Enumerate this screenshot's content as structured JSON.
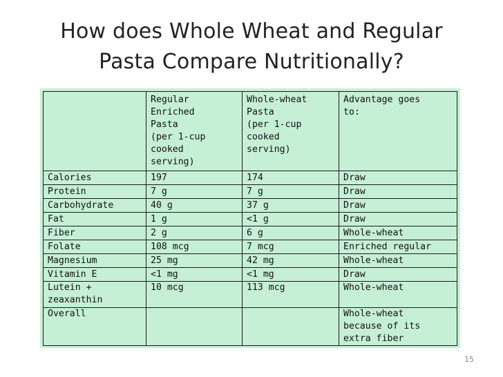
{
  "slide": {
    "title_line1": "How does Whole Wheat and Regular",
    "title_line2": "Pasta Compare Nutritionally?",
    "page_number": "15"
  },
  "table": {
    "headers": [
      "",
      "Regular\nEnriched\nPasta\n(per 1-cup\ncooked\nserving)",
      "Whole-wheat\nPasta\n(per 1-cup\ncooked\nserving)",
      "Advantage goes\nto:"
    ],
    "rows": [
      [
        "Calories",
        "197",
        "174",
        "Draw"
      ],
      [
        "Protein",
        "7 g",
        "7 g",
        "Draw"
      ],
      [
        "Carbohydrate",
        "40 g",
        "37 g",
        "Draw"
      ],
      [
        "Fat",
        "1 g",
        "<1 g",
        "Draw"
      ],
      [
        "Fiber",
        "2 g",
        "6 g",
        "Whole-wheat"
      ],
      [
        "Folate",
        "108 mcg",
        "7 mcg",
        "Enriched regular"
      ],
      [
        "Magnesium",
        "25 mg",
        "42 mg",
        "Whole-wheat"
      ],
      [
        "Vitamin E",
        "<1 mg",
        "<1 mg",
        "Draw"
      ],
      [
        "Lutein +\nzeaxanthin",
        "10 mcg",
        "113 mcg",
        "Whole-wheat"
      ],
      [
        "Overall",
        "",
        "",
        "Whole-wheat\nbecause of its\nextra fiber"
      ]
    ]
  },
  "colors": {
    "table_background": "#c6f0d6",
    "border": "#1a1a1a",
    "title_text": "#222222"
  }
}
